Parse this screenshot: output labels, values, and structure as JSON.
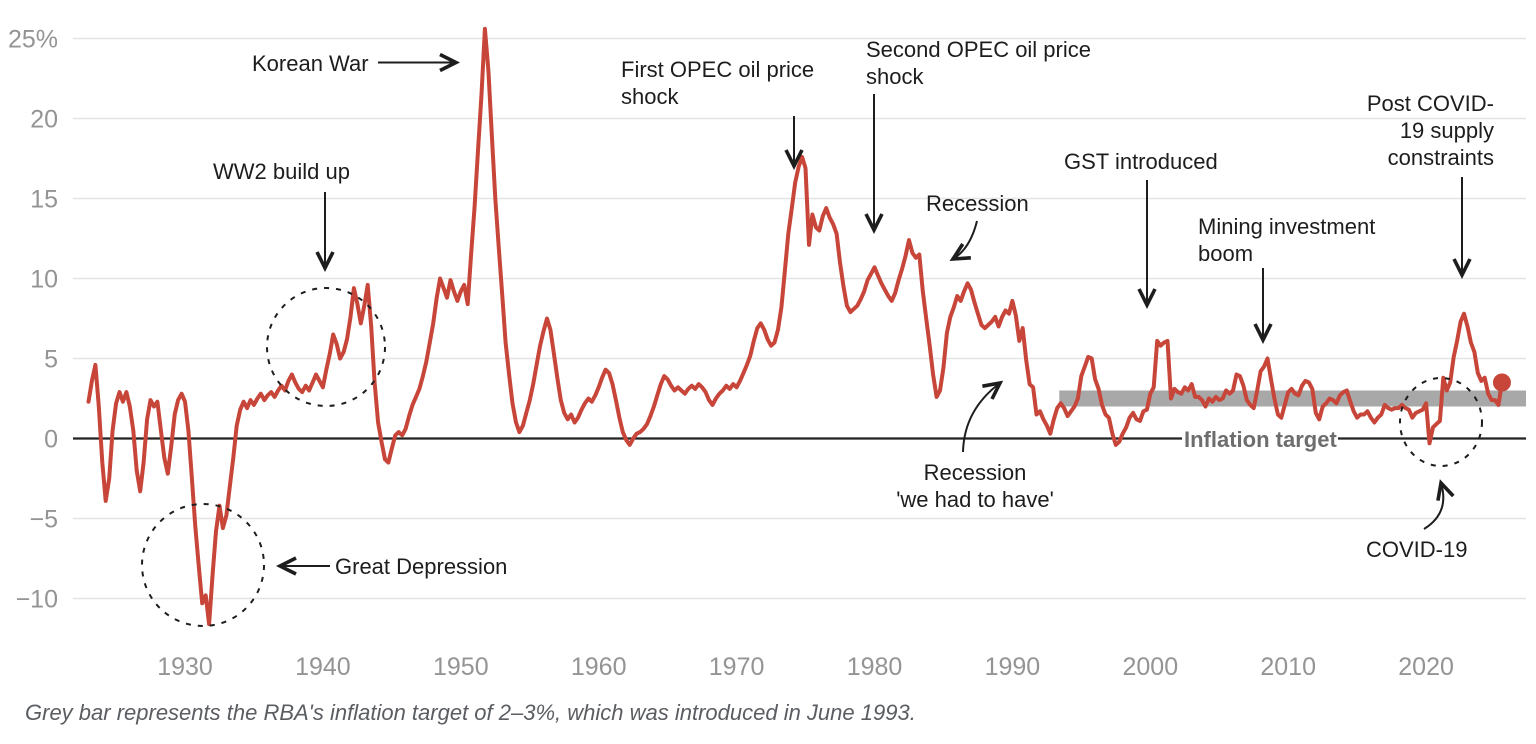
{
  "chart_data": {
    "type": "line",
    "title": "",
    "xlabel": "",
    "ylabel": "",
    "grid": true,
    "x_ticks": [
      1930,
      1940,
      1950,
      1960,
      1970,
      1980,
      1990,
      2000,
      2010,
      2020
    ],
    "y_ticks": [
      {
        "value": 25,
        "label": "25%"
      },
      {
        "value": 20,
        "label": "20"
      },
      {
        "value": 15,
        "label": "15"
      },
      {
        "value": 10,
        "label": "10"
      },
      {
        "value": 5,
        "label": "5"
      },
      {
        "value": 0,
        "label": "0"
      },
      {
        "value": -5,
        "label": "−5"
      },
      {
        "value": -10,
        "label": "−10"
      }
    ],
    "xlim": [
      1922,
      2027
    ],
    "ylim": [
      -12.5,
      26.5
    ],
    "line_color": "#c74639",
    "axis_label_color": "#949494",
    "gridline_color": "#e4e4e4",
    "zero_axis_color": "#222222",
    "target_band": {
      "from_pct": 2,
      "to_pct": 3,
      "start_year": 1993.4,
      "color": "#a8a8a8",
      "label": "Inflation target"
    },
    "end_marker_value": 3.5,
    "series": [
      {
        "start_year": 1923,
        "period_years": 0.25,
        "values": [
          2.3,
          3.6,
          4.6,
          2.0,
          -1.5,
          -3.9,
          -2.5,
          0.5,
          2.2,
          2.9,
          2.3,
          2.9,
          2.0,
          0.5,
          -2.0,
          -3.3,
          -1.5,
          1.2,
          2.4,
          2.0,
          2.3,
          0.5,
          -1.2,
          -2.2,
          -0.5,
          1.5,
          2.4,
          2.8,
          2.3,
          0.5,
          -2.5,
          -5.5,
          -8.0,
          -10.3,
          -9.8,
          -11.6,
          -8.5,
          -5.8,
          -4.2,
          -5.6,
          -4.8,
          -3.0,
          -1.2,
          0.8,
          1.8,
          2.3,
          1.9,
          2.4,
          2.1,
          2.5,
          2.8,
          2.4,
          2.7,
          2.9,
          2.6,
          3.0,
          3.3,
          3.0,
          3.6,
          4.0,
          3.5,
          3.1,
          2.9,
          3.3,
          3.0,
          3.5,
          4.0,
          3.6,
          3.2,
          4.3,
          5.3,
          6.5,
          5.9,
          5.0,
          5.4,
          6.2,
          7.6,
          9.4,
          8.4,
          7.2,
          8.3,
          9.6,
          7.0,
          3.5,
          1.0,
          -0.2,
          -1.3,
          -1.5,
          -0.6,
          0.2,
          0.4,
          0.2,
          0.6,
          1.4,
          2.1,
          2.6,
          3.1,
          3.9,
          4.8,
          6.0,
          7.2,
          8.8,
          10.0,
          9.4,
          8.8,
          9.9,
          9.2,
          8.6,
          9.2,
          9.6,
          8.4,
          11.5,
          14.5,
          18.0,
          21.5,
          25.6,
          23.0,
          19.0,
          15.0,
          12.0,
          9.0,
          6.0,
          4.0,
          2.2,
          1.0,
          0.4,
          0.8,
          1.6,
          2.4,
          3.4,
          4.6,
          5.8,
          6.7,
          7.5,
          6.8,
          5.3,
          3.8,
          2.4,
          1.6,
          1.2,
          1.5,
          1.0,
          1.3,
          1.8,
          2.2,
          2.5,
          2.3,
          2.7,
          3.2,
          3.8,
          4.3,
          4.1,
          3.4,
          2.4,
          1.3,
          0.4,
          -0.1,
          -0.4,
          0.0,
          0.3,
          0.4,
          0.6,
          0.9,
          1.4,
          2.0,
          2.7,
          3.4,
          3.9,
          3.7,
          3.3,
          3.0,
          3.2,
          3.0,
          2.8,
          3.1,
          3.3,
          3.1,
          3.4,
          3.2,
          2.9,
          2.4,
          2.1,
          2.5,
          2.8,
          3.0,
          3.3,
          3.1,
          3.4,
          3.2,
          3.6,
          4.1,
          4.6,
          5.2,
          6.1,
          6.9,
          7.2,
          6.8,
          6.2,
          5.8,
          6.0,
          6.8,
          8.2,
          10.5,
          12.8,
          14.4,
          16.0,
          17.0,
          17.6,
          16.9,
          12.1,
          14.0,
          13.2,
          13.0,
          13.9,
          14.4,
          13.8,
          13.4,
          12.8,
          11.0,
          9.5,
          8.3,
          7.9,
          8.1,
          8.3,
          8.7,
          9.2,
          9.9,
          10.3,
          10.7,
          10.2,
          9.7,
          9.3,
          8.9,
          8.6,
          9.1,
          9.9,
          10.6,
          11.4,
          12.4,
          11.6,
          11.3,
          11.5,
          9.2,
          7.5,
          5.8,
          4.0,
          2.6,
          3.0,
          4.4,
          6.6,
          7.6,
          8.2,
          8.9,
          8.6,
          9.2,
          9.7,
          9.3,
          8.5,
          7.8,
          7.1,
          6.9,
          7.1,
          7.3,
          7.6,
          7.0,
          7.6,
          8.0,
          7.8,
          8.6,
          7.7,
          6.1,
          6.9,
          4.9,
          3.4,
          3.2,
          1.5,
          1.7,
          1.2,
          0.8,
          0.3,
          1.2,
          1.9,
          2.2,
          1.9,
          1.4,
          1.7,
          2.0,
          2.5,
          3.9,
          4.5,
          5.1,
          5.0,
          3.7,
          3.1,
          2.1,
          1.5,
          1.3,
          0.3,
          -0.4,
          -0.2,
          0.3,
          0.7,
          1.3,
          1.6,
          1.2,
          1.1,
          1.7,
          1.8,
          2.8,
          3.2,
          6.1,
          5.8,
          6.0,
          6.1,
          2.5,
          3.1,
          2.9,
          2.8,
          3.2,
          3.0,
          3.4,
          2.6,
          2.6,
          2.4,
          2.0,
          2.5,
          2.3,
          2.6,
          2.4,
          2.5,
          3.0,
          2.8,
          3.0,
          4.0,
          3.9,
          3.3,
          2.4,
          2.1,
          1.9,
          3.0,
          4.2,
          4.5,
          5.0,
          3.7,
          2.5,
          1.5,
          1.3,
          2.1,
          2.9,
          3.1,
          2.8,
          2.7,
          3.3,
          3.6,
          3.5,
          3.1,
          1.6,
          1.2,
          2.0,
          2.2,
          2.5,
          2.4,
          2.2,
          2.7,
          2.9,
          3.0,
          2.3,
          1.7,
          1.3,
          1.5,
          1.5,
          1.7,
          1.3,
          1.0,
          1.3,
          1.5,
          2.1,
          1.9,
          1.8,
          1.9,
          1.9,
          2.1,
          1.9,
          1.8,
          1.3,
          1.6,
          1.7,
          1.8,
          2.2,
          -0.3,
          0.7,
          0.9,
          1.1,
          3.8,
          3.0,
          3.5,
          5.1,
          6.1,
          7.3,
          7.8,
          7.0,
          6.0,
          5.4,
          4.1,
          3.6,
          3.8,
          2.8,
          2.4,
          2.4,
          2.1,
          3.5
        ]
      }
    ]
  },
  "annotations": {
    "korean_war": {
      "lines": [
        "Korean War"
      ]
    },
    "ww2": {
      "lines": [
        "WW2 build up"
      ]
    },
    "first_opec": {
      "lines": [
        "First OPEC oil price",
        "shock"
      ]
    },
    "second_opec": {
      "lines": [
        "Second OPEC oil price",
        "shock"
      ]
    },
    "recession_1980s": {
      "lines": [
        "Recession"
      ]
    },
    "gst": {
      "lines": [
        "GST introduced"
      ]
    },
    "mining_boom": {
      "lines": [
        "Mining investment",
        "boom"
      ]
    },
    "post_covid": {
      "lines": [
        "Post COVID-",
        "19 supply",
        "constraints"
      ]
    },
    "inflation_target": {
      "lines": [
        "Inflation target"
      ]
    },
    "recession_we_had_to_have": {
      "lines": [
        "Recession",
        "'we had to have'"
      ]
    },
    "covid": {
      "lines": [
        "COVID-19"
      ]
    },
    "great_depression": {
      "lines": [
        "Great Depression"
      ]
    }
  },
  "footnote": "Grey bar represents the RBA's inflation target of 2–3%, which was introduced in June 1993."
}
